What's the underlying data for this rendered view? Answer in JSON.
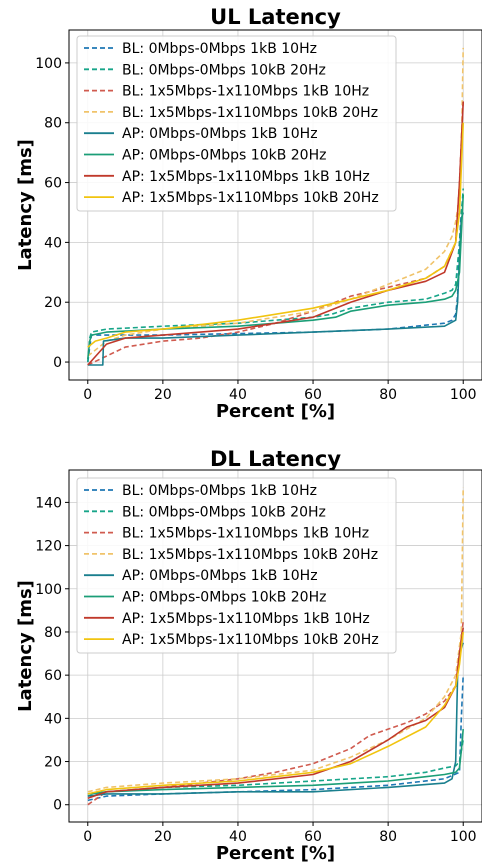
{
  "chart_data": [
    {
      "type": "line",
      "title": "UL Latency",
      "xlabel": "Percent [%]",
      "ylabel": "Latency [ms]",
      "xlim": [
        -5,
        105
      ],
      "ylim": [
        -6,
        111
      ],
      "xticks": [
        0,
        20,
        40,
        60,
        80,
        100
      ],
      "yticks": [
        0,
        20,
        40,
        60,
        80,
        100
      ],
      "grid": true,
      "legend": "top-left",
      "series": [
        {
          "name": "BL: 0Mbps-0Mbps 1kB 10Hz",
          "color": "#1f77b4",
          "dash": "dashed",
          "x": [
            0,
            0.5,
            1,
            5,
            20,
            40,
            60,
            80,
            95,
            97,
            98,
            98.5,
            99,
            99.5,
            100
          ],
          "y": [
            0,
            5,
            9,
            9,
            9,
            9.5,
            10,
            11,
            13,
            14,
            16,
            22,
            40,
            50,
            56
          ]
        },
        {
          "name": "BL: 0Mbps-0Mbps 10kB 20Hz",
          "color": "#17a589",
          "dash": "dashed",
          "x": [
            0,
            0.5,
            1,
            5,
            20,
            40,
            60,
            65,
            70,
            80,
            90,
            95,
            97,
            98,
            99,
            100
          ],
          "y": [
            0,
            8,
            10,
            11,
            12,
            13,
            15,
            16,
            18,
            20,
            21,
            23,
            24,
            26,
            40,
            58
          ]
        },
        {
          "name": "BL: 1x5Mbps-1x110Mbps 1kB 10Hz",
          "color": "#d05b4f",
          "dash": "dashed",
          "x": [
            0,
            5,
            10,
            20,
            30,
            40,
            50,
            60,
            70,
            80,
            90,
            95,
            98,
            99,
            100
          ],
          "y": [
            -1,
            2,
            5,
            7,
            8,
            10,
            13,
            17,
            22,
            25,
            28,
            32,
            40,
            60,
            88
          ]
        },
        {
          "name": "BL: 1x5Mbps-1x110Mbps 10kB 20Hz",
          "color": "#f0c36a",
          "dash": "dashed",
          "x": [
            0,
            5,
            10,
            20,
            40,
            60,
            70,
            80,
            90,
            95,
            97,
            98,
            99,
            99.5,
            100
          ],
          "y": [
            2,
            7,
            9,
            11,
            13,
            17,
            21,
            26,
            31,
            37,
            42,
            47,
            55,
            70,
            105
          ]
        },
        {
          "name": "AP: 0Mbps-0Mbps  1kB 10Hz",
          "color": "#1a7f8e",
          "dash": "solid",
          "x": [
            0,
            4,
            4.2,
            10,
            20,
            40,
            60,
            80,
            95,
            98,
            98.5,
            99,
            99.5,
            100
          ],
          "y": [
            -1,
            -1,
            7,
            8,
            8,
            9,
            10,
            11,
            12,
            14,
            20,
            35,
            48,
            50
          ]
        },
        {
          "name": "AP: 0Mbps-0Mbps 10kB 20Hz",
          "color": "#1b9e77",
          "dash": "solid",
          "x": [
            0,
            0.5,
            1,
            5,
            20,
            40,
            60,
            66,
            70,
            80,
            90,
            95,
            97,
            98,
            99,
            100
          ],
          "y": [
            1,
            7,
            9,
            10,
            11,
            12,
            14,
            15,
            17,
            19,
            20,
            21,
            22,
            24,
            30,
            56
          ]
        },
        {
          "name": "AP: 1x5Mbps-1x110Mbps 1kB 10Hz",
          "color": "#c0392b",
          "dash": "solid",
          "x": [
            0,
            5,
            10,
            20,
            40,
            60,
            70,
            80,
            90,
            95,
            98,
            99,
            100
          ],
          "y": [
            -1,
            6,
            8,
            9,
            11,
            15,
            20,
            24,
            27,
            30,
            40,
            60,
            87
          ]
        },
        {
          "name": "AP: 1x5Mbps-1x110Mbps 10kB 20Hz",
          "color": "#f1c40f",
          "dash": "solid",
          "x": [
            0,
            2,
            5,
            10,
            20,
            40,
            60,
            70,
            80,
            90,
            95,
            98,
            99,
            100
          ],
          "y": [
            5,
            7,
            8,
            10,
            11,
            14,
            18,
            21,
            24,
            28,
            32,
            40,
            50,
            80
          ]
        }
      ]
    },
    {
      "type": "line",
      "title": "DL Latency",
      "xlabel": "Percent [%]",
      "ylabel": "Latency [ms]",
      "xlim": [
        -5,
        105
      ],
      "ylim": [
        -8,
        155
      ],
      "xticks": [
        0,
        20,
        40,
        60,
        80,
        100
      ],
      "yticks": [
        0,
        20,
        40,
        60,
        80,
        100,
        120,
        140
      ],
      "grid": true,
      "legend": "top-left",
      "series": [
        {
          "name": "BL: 0Mbps-0Mbps 1kB 10Hz",
          "color": "#1f77b4",
          "dash": "dashed",
          "x": [
            0,
            5,
            20,
            40,
            60,
            80,
            95,
            99,
            99.5,
            100
          ],
          "y": [
            2,
            4,
            5,
            6,
            7,
            9,
            12,
            15,
            40,
            60
          ]
        },
        {
          "name": "BL: 0Mbps-0Mbps 10kB 20Hz",
          "color": "#17a589",
          "dash": "dashed",
          "x": [
            0,
            5,
            20,
            40,
            60,
            80,
            90,
            95,
            98,
            99,
            100
          ],
          "y": [
            4,
            6,
            8,
            9,
            11,
            13,
            15,
            17,
            18,
            20,
            30
          ]
        },
        {
          "name": "BL: 1x5Mbps-1x110Mbps 1kB 10Hz",
          "color": "#d05b4f",
          "dash": "dashed",
          "x": [
            0,
            5,
            20,
            40,
            50,
            60,
            70,
            75,
            80,
            85,
            90,
            95,
            98,
            99,
            100
          ],
          "y": [
            0,
            6,
            8,
            12,
            15,
            19,
            26,
            32,
            35,
            38,
            42,
            48,
            55,
            70,
            85
          ]
        },
        {
          "name": "BL: 1x5Mbps-1x110Mbps 10kB 20Hz",
          "color": "#f0c36a",
          "dash": "dashed",
          "x": [
            0,
            5,
            20,
            40,
            60,
            70,
            80,
            90,
            95,
            98,
            99.5,
            100
          ],
          "y": [
            6,
            8,
            10,
            12,
            16,
            22,
            30,
            40,
            50,
            60,
            80,
            147
          ]
        },
        {
          "name": "AP: 0Mbps-0Mbps  1kB 10Hz",
          "color": "#1a7f8e",
          "dash": "solid",
          "x": [
            0,
            5,
            20,
            40,
            60,
            80,
            95,
            97,
            98,
            98.5,
            99,
            100
          ],
          "y": [
            4,
            5,
            5,
            6,
            6,
            8,
            10,
            12,
            20,
            60,
            70,
            75
          ]
        },
        {
          "name": "AP: 0Mbps-0Mbps 10kB 20Hz",
          "color": "#1b9e77",
          "dash": "solid",
          "x": [
            0,
            5,
            20,
            40,
            60,
            80,
            90,
            95,
            98,
            99,
            99.5,
            100
          ],
          "y": [
            5,
            6,
            7,
            8,
            9,
            11,
            13,
            14,
            15,
            17,
            25,
            35
          ]
        },
        {
          "name": "AP: 1x5Mbps-1x110Mbps 1kB 10Hz",
          "color": "#c0392b",
          "dash": "solid",
          "x": [
            0,
            5,
            20,
            40,
            60,
            70,
            80,
            85,
            90,
            95,
            98,
            99,
            100
          ],
          "y": [
            3,
            6,
            8,
            10,
            14,
            20,
            30,
            36,
            39,
            45,
            55,
            70,
            82
          ]
        },
        {
          "name": "AP: 1x5Mbps-1x110Mbps 10kB 20Hz",
          "color": "#f1c40f",
          "dash": "solid",
          "x": [
            0,
            5,
            20,
            40,
            60,
            70,
            80,
            90,
            95,
            98,
            99,
            100
          ],
          "y": [
            5,
            7,
            9,
            11,
            15,
            19,
            27,
            36,
            46,
            55,
            65,
            80
          ]
        }
      ]
    }
  ]
}
